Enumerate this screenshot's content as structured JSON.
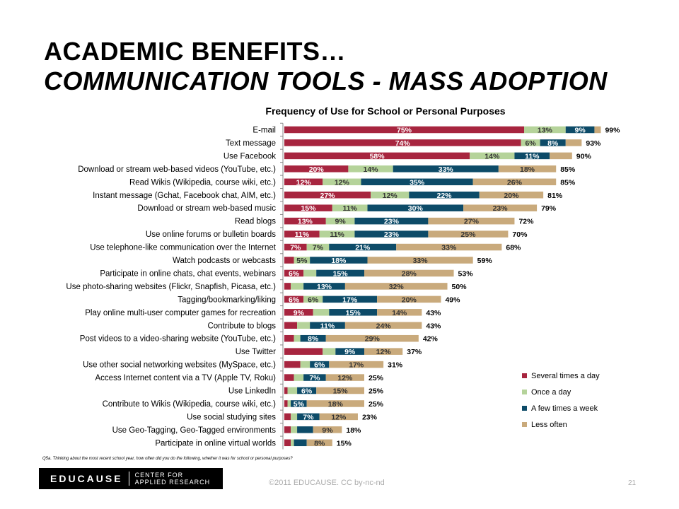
{
  "title_line1": "ACADEMIC BENEFITS…",
  "title_line2": "COMMUNICATION TOOLS - MASS ADOPTION",
  "footnote": "Q5a. Thinking about the most recent school year, how often did you do the following, whether it was for school or personal purposes?",
  "logo": {
    "main": "EDUCAUSE",
    "sub1": "CENTER FOR",
    "sub2": "APPLIED RESEARCH"
  },
  "copyright": "©2011 EDUCAUSE. CC by-nc-nd",
  "page_number": "21",
  "chart_data": {
    "type": "bar",
    "orientation": "horizontal",
    "stacked": true,
    "title": "Frequency of Use for School or Personal Purposes",
    "legend_position": "bottom-right",
    "xlim": [
      0,
      100
    ],
    "colors": [
      "#A7253F",
      "#B5D39A",
      "#0D4B68",
      "#C9AA7C"
    ],
    "categories": [
      "E-mail",
      "Text message",
      "Use Facebook",
      "Download or stream web-based videos (YouTube, etc.)",
      "Read Wikis (Wikipedia, course wiki, etc.)",
      "Instant message (Gchat, Facebook chat, AIM, etc.)",
      "Download or stream web-based music",
      "Read blogs",
      "Use online forums or bulletin boards",
      "Use telephone-like communication over the Internet",
      "Watch podcasts or webcasts",
      "Participate in online chats, chat events, webinars",
      "Use photo-sharing websites (Flickr, Snapfish, Picasa, etc.)",
      "Tagging/bookmarking/liking",
      "Play online multi-user computer games for recreation",
      "Contribute to blogs",
      "Post videos to a video-sharing website (YouTube, etc.)",
      "Use Twitter",
      "Use other social networking websites (MySpace, etc.)",
      "Access Internet content via a TV (Apple TV, Roku)",
      "Use LinkedIn",
      "Contribute to Wikis (Wikipedia, course wiki, etc.)",
      "Use social studying sites",
      "Use Geo-Tagging, Geo-Tagged environments",
      "Participate in online virtual worlds"
    ],
    "series": [
      {
        "name": "Several times a day",
        "values": [
          75,
          74,
          58,
          20,
          12,
          27,
          15,
          13,
          11,
          7,
          3,
          6,
          2,
          6,
          9,
          4,
          3,
          12,
          5,
          3,
          1,
          1,
          2,
          2,
          2
        ]
      },
      {
        "name": "Once a day",
        "values": [
          13,
          6,
          14,
          14,
          12,
          12,
          11,
          9,
          11,
          7,
          5,
          4,
          4,
          6,
          5,
          4,
          2,
          4,
          3,
          3,
          3,
          1,
          2,
          2,
          1
        ]
      },
      {
        "name": "A few times a week",
        "values": [
          9,
          8,
          11,
          33,
          35,
          22,
          30,
          23,
          23,
          21,
          18,
          15,
          13,
          17,
          15,
          11,
          8,
          9,
          6,
          7,
          6,
          5,
          7,
          5,
          4
        ]
      },
      {
        "name": "Less often",
        "values": [
          2,
          5,
          7,
          18,
          26,
          20,
          23,
          27,
          25,
          33,
          33,
          28,
          32,
          20,
          14,
          24,
          29,
          12,
          17,
          12,
          15,
          18,
          12,
          9,
          8
        ]
      }
    ],
    "segment_labels": [
      [
        "75%",
        "13%",
        "9%",
        ""
      ],
      [
        "74%",
        "6%",
        "8%",
        ""
      ],
      [
        "58%",
        "14%",
        "11%",
        ""
      ],
      [
        "20%",
        "14%",
        "33%",
        "18%"
      ],
      [
        "12%",
        "12%",
        "35%",
        "26%"
      ],
      [
        "27%",
        "12%",
        "22%",
        "20%"
      ],
      [
        "15%",
        "11%",
        "30%",
        "23%"
      ],
      [
        "13%",
        "9%",
        "23%",
        "27%"
      ],
      [
        "11%",
        "11%",
        "23%",
        "25%"
      ],
      [
        "7%",
        "7%",
        "21%",
        "33%"
      ],
      [
        "",
        "5%",
        "18%",
        "33%"
      ],
      [
        "6%",
        "",
        "15%",
        "28%"
      ],
      [
        "",
        "",
        "13%",
        "32%"
      ],
      [
        "6%",
        "6%",
        "17%",
        "20%"
      ],
      [
        "9%",
        "",
        "15%",
        "14%"
      ],
      [
        "",
        "",
        "11%",
        "24%"
      ],
      [
        "",
        "",
        "8%",
        "29%"
      ],
      [
        "",
        "",
        "9%",
        "12%"
      ],
      [
        "",
        "",
        "6%",
        "17%"
      ],
      [
        "",
        "",
        "7%",
        "12%"
      ],
      [
        "",
        "",
        "6%",
        "15%"
      ],
      [
        "",
        "",
        "5%",
        "18%"
      ],
      [
        "",
        "",
        "7%",
        "12%"
      ],
      [
        "",
        "",
        "",
        "9%"
      ],
      [
        "",
        "",
        "",
        "8%"
      ]
    ],
    "totals": [
      "99%",
      "93%",
      "90%",
      "85%",
      "85%",
      "81%",
      "79%",
      "72%",
      "70%",
      "68%",
      "59%",
      "53%",
      "50%",
      "49%",
      "43%",
      "43%",
      "42%",
      "37%",
      "31%",
      "25%",
      "25%",
      "25%",
      "23%",
      "18%",
      "15%"
    ]
  }
}
